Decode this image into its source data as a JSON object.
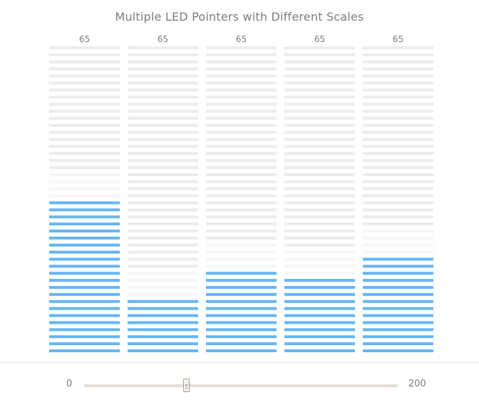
{
  "chart_data": {
    "type": "bar",
    "subtype": "led-gauge",
    "title": "Multiple LED Pointers with Different Scales",
    "categories": [
      "",
      "",
      "",
      "",
      ""
    ],
    "series": [
      {
        "values": [
          65,
          65,
          65,
          65,
          65
        ],
        "scale_max": [
          130,
          350,
          240,
          270,
          200
        ],
        "value_labels": [
          "65",
          "65",
          "65",
          "65",
          "65"
        ]
      }
    ],
    "ylim_min": 0,
    "colors": {
      "lit": "#64b5f6",
      "unlit": "#ececec",
      "unlit_faint": "#f6f6f6",
      "label": "#7c7c7c"
    },
    "grid": false,
    "legend": "none"
  },
  "slider": {
    "min_label": "0",
    "max_label": "200",
    "min": 0,
    "max": 200,
    "value": 65
  }
}
